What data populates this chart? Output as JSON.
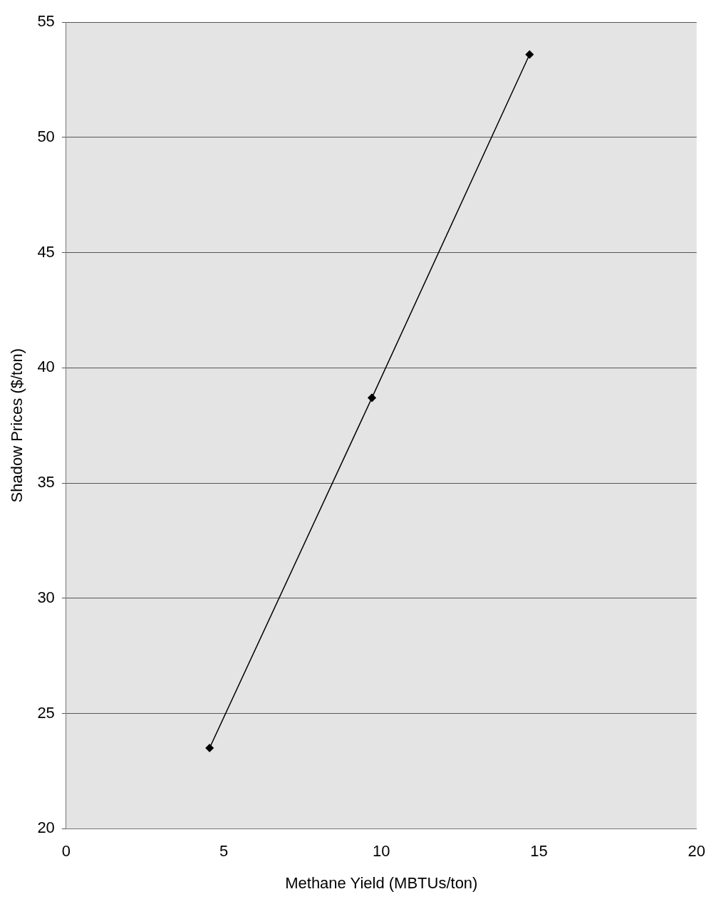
{
  "chart_data": {
    "type": "line",
    "xlabel": "Methane Yield (MBTUs/ton)",
    "ylabel": "Shadow Prices ($/ton)",
    "x": [
      4.55,
      9.7,
      14.7
    ],
    "series": [
      {
        "color": "#000000",
        "values": [
          23.5,
          38.7,
          53.6
        ]
      }
    ],
    "xlim": [
      0,
      20
    ],
    "xticks": [
      0,
      5,
      10,
      15,
      20
    ],
    "ylim": [
      20,
      55
    ],
    "yticks": [
      20,
      25,
      30,
      35,
      40,
      45,
      50,
      55
    ],
    "grid": "y",
    "marker": "diamond",
    "line_style": "solid",
    "legend": false
  }
}
